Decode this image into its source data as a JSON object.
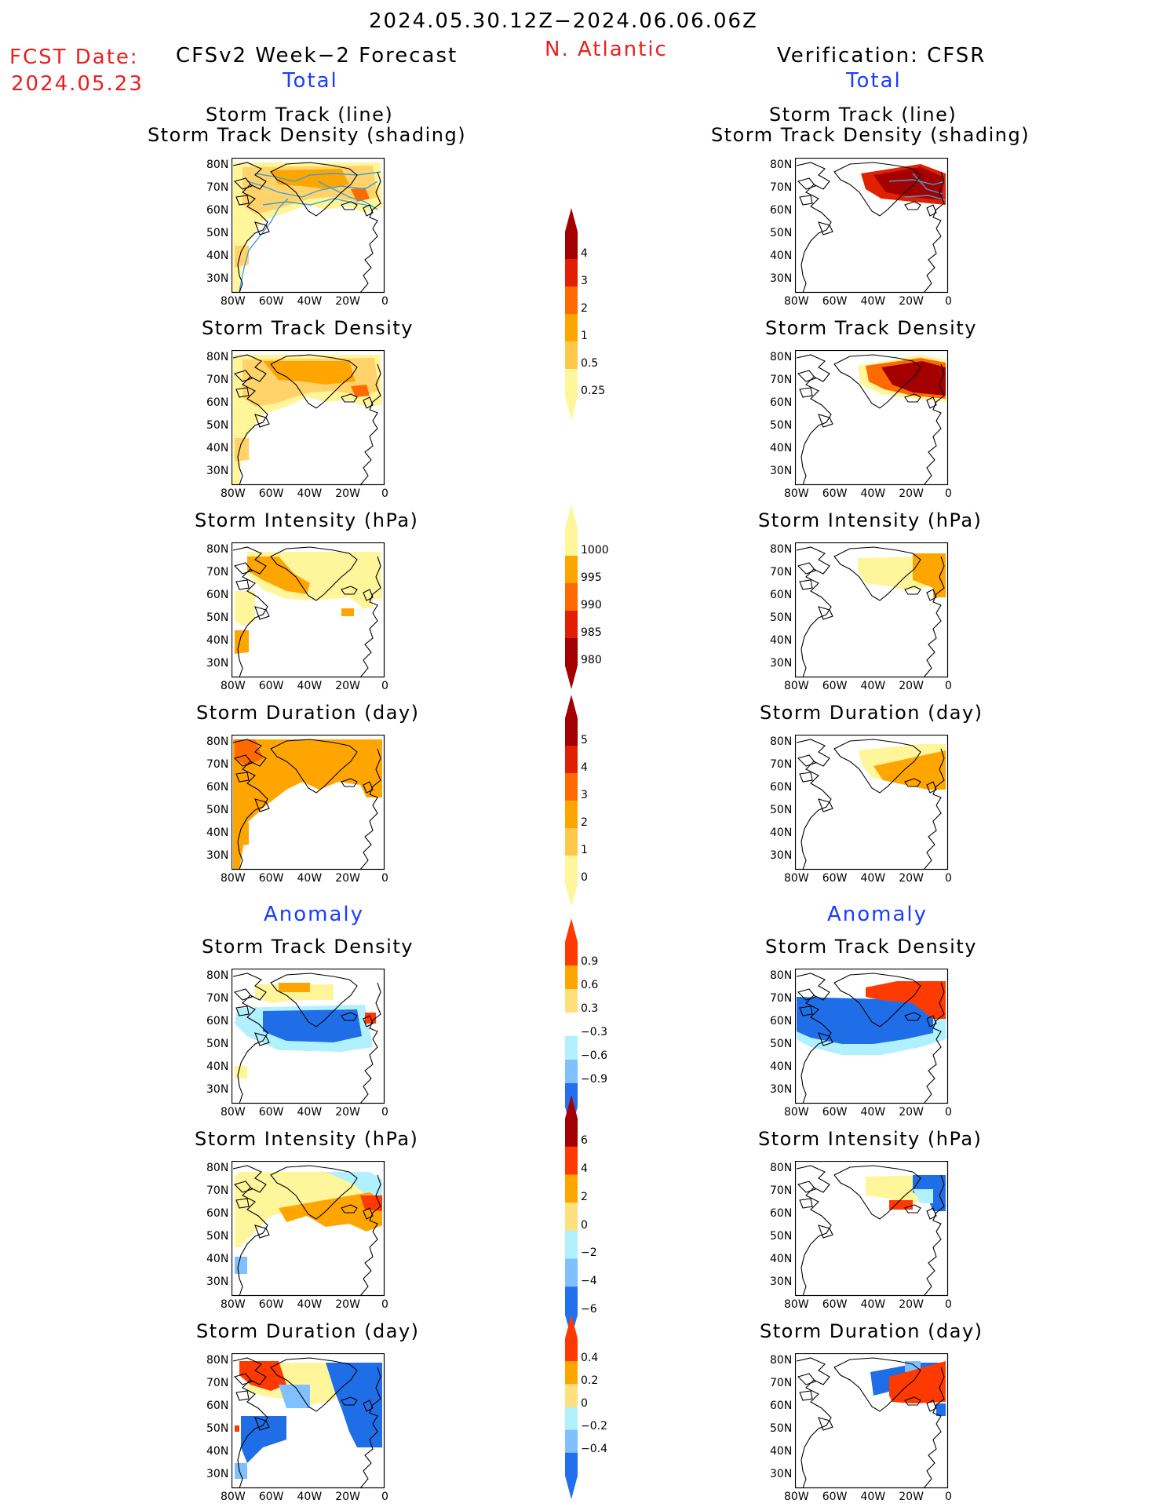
{
  "header": {
    "date_range": "2024.05.30.12Z−2024.06.06.06Z",
    "region": "N. Atlantic",
    "fcst_date_label": "FCST Date:",
    "fcst_date_value": "2024.05.23",
    "left_title": "CFSv2 Week−2 Forecast",
    "right_title": "Verification: CFSR",
    "section_total": "Total",
    "section_anomaly": "Anomaly"
  },
  "panel_titles": {
    "track_line": "Storm Track (line)",
    "track_density_shading": "Storm Track Density (shading)",
    "track_density": "Storm Track Density",
    "intensity": "Storm Intensity (hPa)",
    "duration": "Storm Duration (day)"
  },
  "axes": {
    "lon_ticks": [
      "80W",
      "60W",
      "40W",
      "20W",
      "0"
    ],
    "lat_ticks": [
      "80N",
      "70N",
      "60N",
      "50N",
      "40N",
      "30N"
    ]
  },
  "colorbars": [
    {
      "name": "density-total",
      "labels": [
        "4",
        "3",
        "2",
        "1",
        "0.5",
        "0.25"
      ],
      "colors": [
        "#a50000",
        "#e02000",
        "#ff6a00",
        "#ffa500",
        "#ffc84a",
        "#fff59a"
      ]
    },
    {
      "name": "intensity-total",
      "labels": [
        "1000",
        "995",
        "990",
        "985",
        "980"
      ],
      "colors": [
        "#fff59a",
        "#ffa500",
        "#ff6a00",
        "#e02000",
        "#a50000"
      ]
    },
    {
      "name": "duration-total",
      "labels": [
        "5",
        "4",
        "3",
        "2",
        "1",
        "0"
      ],
      "colors": [
        "#a50000",
        "#e02000",
        "#ff6a00",
        "#ffa500",
        "#ffc84a",
        "#fff59a"
      ]
    },
    {
      "name": "density-anom",
      "labels": [
        "0.9",
        "0.6",
        "0.3",
        "−0.3",
        "−0.6",
        "−0.9"
      ],
      "colors": [
        "#ff3a00",
        "#ffa500",
        "#ffe07a",
        "#ffffff",
        "#b0f0ff",
        "#80c0ff",
        "#2070f0"
      ]
    },
    {
      "name": "intensity-anom",
      "labels": [
        "6",
        "4",
        "2",
        "0",
        "−2",
        "−4",
        "−6"
      ],
      "colors": [
        "#a50000",
        "#ff3a00",
        "#ffa500",
        "#ffe07a",
        "#b0f0ff",
        "#80c0ff",
        "#2070f0"
      ]
    },
    {
      "name": "duration-anom",
      "labels": [
        "0.4",
        "0.2",
        "0",
        "−0.2",
        "−0.4"
      ],
      "colors": [
        "#ff3a00",
        "#ffa500",
        "#ffe07a",
        "#b0f0ff",
        "#80c0ff",
        "#2070f0"
      ]
    }
  ],
  "fills": {
    "pale": "#fff59a",
    "light": "#ffd36a",
    "orange": "#ffa500",
    "deep_orange": "#ff6a00",
    "red": "#e02000",
    "dark_red": "#a50000",
    "anom_pos_hi": "#ff3a00",
    "anom_neg_hi": "#1f6ee8",
    "anom_neg_mid": "#80c0ff",
    "anom_neg_lo": "#b0f0ff",
    "track_line": "#3da0d8"
  }
}
